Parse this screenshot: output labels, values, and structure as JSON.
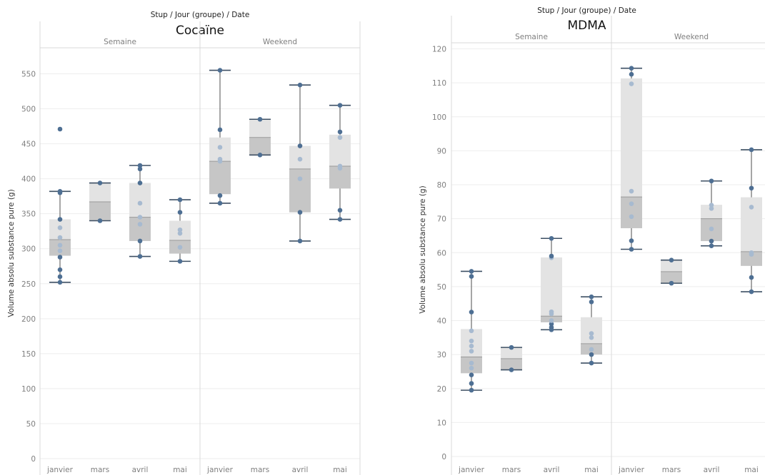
{
  "chart_data": [
    {
      "type": "box",
      "header": "Stup / Jour (groupe) / Date",
      "title": "Cocaïne",
      "ylabel": "Volume absolu substance pure (g)",
      "ylim": [
        0,
        590
      ],
      "yticks": [
        0,
        50,
        100,
        150,
        200,
        250,
        300,
        350,
        400,
        450,
        500,
        550
      ],
      "groups": [
        "Semaine",
        "Weekend"
      ],
      "categories": [
        "janvier",
        "mars",
        "avril",
        "mai"
      ],
      "series": [
        {
          "group": "Semaine",
          "category": "janvier",
          "whisker_low": 252,
          "q1": 290,
          "median": 313,
          "q3": 342,
          "whisker_high": 382,
          "points": [
            252,
            260,
            270,
            288,
            297,
            305,
            316,
            330,
            342,
            380,
            382,
            471
          ]
        },
        {
          "group": "Semaine",
          "category": "mars",
          "whisker_low": 340,
          "q1": 340,
          "median": 367,
          "q3": 394,
          "whisker_high": 394,
          "points": [
            340,
            394
          ]
        },
        {
          "group": "Semaine",
          "category": "avril",
          "whisker_low": 289,
          "q1": 311,
          "median": 345,
          "q3": 394,
          "whisker_high": 419,
          "points": [
            289,
            311,
            335,
            345,
            365,
            394,
            414,
            419
          ]
        },
        {
          "group": "Semaine",
          "category": "mai",
          "whisker_low": 282,
          "q1": 293,
          "median": 312,
          "q3": 340,
          "whisker_high": 370,
          "points": [
            282,
            302,
            322,
            327,
            352,
            370
          ]
        },
        {
          "group": "Weekend",
          "category": "janvier",
          "whisker_low": 365,
          "q1": 378,
          "median": 425,
          "q3": 459,
          "whisker_high": 555,
          "points": [
            365,
            376,
            425,
            428,
            445,
            470,
            555
          ]
        },
        {
          "group": "Weekend",
          "category": "mars",
          "whisker_low": 434,
          "q1": 434,
          "median": 459,
          "q3": 485,
          "whisker_high": 485,
          "points": [
            434,
            485
          ]
        },
        {
          "group": "Weekend",
          "category": "avril",
          "whisker_low": 311,
          "q1": 352,
          "median": 414,
          "q3": 447,
          "whisker_high": 534,
          "points": [
            311,
            352,
            400,
            428,
            447,
            534
          ]
        },
        {
          "group": "Weekend",
          "category": "mai",
          "whisker_low": 342,
          "q1": 386,
          "median": 418,
          "q3": 463,
          "whisker_high": 505,
          "points": [
            342,
            355,
            415,
            418,
            459,
            467,
            505
          ]
        }
      ]
    },
    {
      "type": "box",
      "header": "Stup / Jour (groupe) / Date",
      "title": "MDMA",
      "ylabel": "Volume absolu substance pure (g)",
      "ylim": [
        0,
        122
      ],
      "yticks": [
        0,
        10,
        20,
        30,
        40,
        50,
        60,
        70,
        80,
        90,
        100,
        110,
        120
      ],
      "groups": [
        "Semaine",
        "Weekend"
      ],
      "categories": [
        "janvier",
        "mars",
        "avril",
        "mai"
      ],
      "series": [
        {
          "group": "Semaine",
          "category": "janvier",
          "whisker_low": 19.5,
          "q1": 24.5,
          "median": 29.3,
          "q3": 37.5,
          "whisker_high": 54.5,
          "points": [
            19.5,
            21.5,
            24,
            26,
            27.5,
            31,
            32.5,
            34,
            37,
            42.5,
            53,
            54.5
          ]
        },
        {
          "group": "Semaine",
          "category": "mars",
          "whisker_low": 25.5,
          "q1": 25.5,
          "median": 28.8,
          "q3": 32.1,
          "whisker_high": 32.1,
          "points": [
            25.5,
            32.1
          ]
        },
        {
          "group": "Semaine",
          "category": "avril",
          "whisker_low": 37.3,
          "q1": 39.5,
          "median": 41.3,
          "q3": 58.6,
          "whisker_high": 64.2,
          "points": [
            37.3,
            38,
            39,
            40,
            42,
            42.6,
            58.5,
            59,
            64.2
          ]
        },
        {
          "group": "Semaine",
          "category": "mai",
          "whisker_low": 27.5,
          "q1": 30,
          "median": 33.2,
          "q3": 41,
          "whisker_high": 47,
          "points": [
            27.5,
            30,
            31.5,
            35,
            36.2,
            45.5,
            47
          ]
        },
        {
          "group": "Weekend",
          "category": "janvier",
          "whisker_low": 61,
          "q1": 67.2,
          "median": 76.4,
          "q3": 111.3,
          "whisker_high": 114.3,
          "points": [
            61,
            63.5,
            70.6,
            74.4,
            78.1,
            109.7,
            112.5,
            114.3
          ]
        },
        {
          "group": "Weekend",
          "category": "mars",
          "whisker_low": 51,
          "q1": 51,
          "median": 54.4,
          "q3": 57.8,
          "whisker_high": 57.8,
          "points": [
            51,
            57.8
          ]
        },
        {
          "group": "Weekend",
          "category": "avril",
          "whisker_low": 62,
          "q1": 63.4,
          "median": 70,
          "q3": 74.1,
          "whisker_high": 81.1,
          "points": [
            62,
            63.4,
            67,
            73,
            74,
            81.1
          ]
        },
        {
          "group": "Weekend",
          "category": "mai",
          "whisker_low": 48.5,
          "q1": 56.1,
          "median": 60.3,
          "q3": 76.3,
          "whisker_high": 90.3,
          "points": [
            48.5,
            52.7,
            59.5,
            60,
            73.4,
            79,
            90.3
          ]
        }
      ]
    }
  ],
  "colors": {
    "point_dark": "#4e6f93",
    "point_light": "#a7bad0",
    "box_lower": "#c6c6c6",
    "box_upper": "#e3e3e3",
    "whisker": "#6b6b6b",
    "grid": "#eeeeee",
    "divider": "#d9d9d9",
    "text": "#7f7f7f",
    "title": "#111111"
  }
}
